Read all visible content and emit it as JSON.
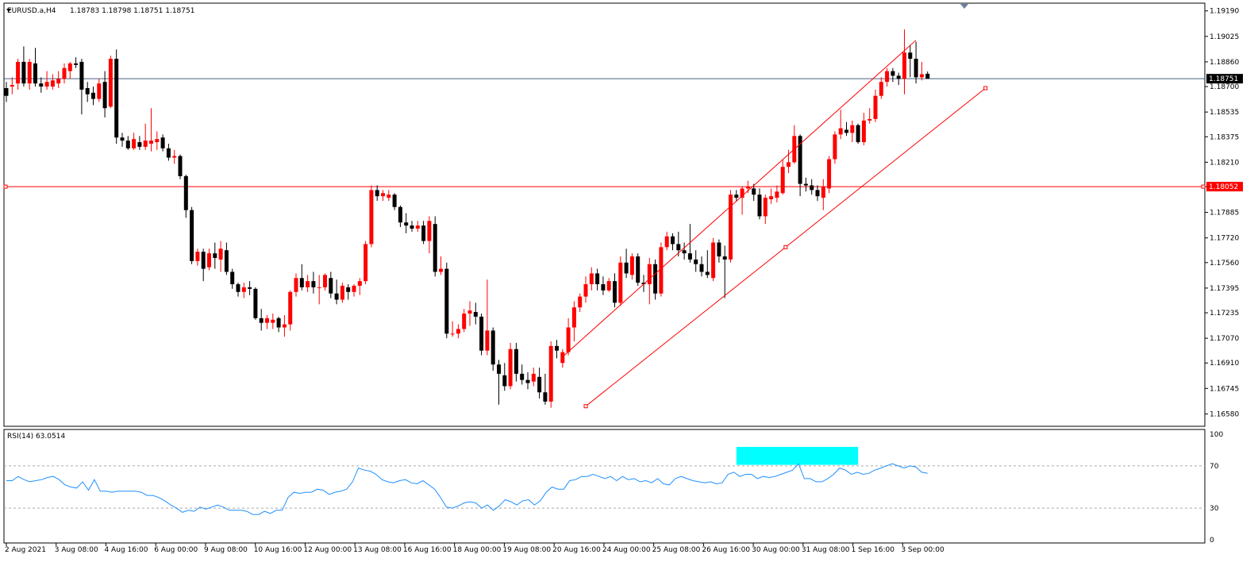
{
  "chart_data": [
    {
      "type": "candlestick",
      "symbol_label": "EURUSD.a,H4",
      "ohlc_label": "1.18783 1.18798 1.18751 1.18751",
      "ylim": [
        1.165,
        1.1924
      ],
      "y_ticks": [
        "1.19190",
        "1.19025",
        "1.18860",
        "1.18700",
        "1.18535",
        "1.18375",
        "1.18210",
        "1.18052",
        "1.17885",
        "1.17720",
        "1.17560",
        "1.17395",
        "1.17235",
        "1.17070",
        "1.16910",
        "1.16745",
        "1.16580"
      ],
      "current_price": 1.18751,
      "current_price_label": "1.18751",
      "hline": 1.18052,
      "hline_label": "1.18052",
      "x_labels": [
        "2 Aug 2021",
        "3 Aug 08:00",
        "4 Aug 16:00",
        "6 Aug 00:00",
        "9 Aug 08:00",
        "10 Aug 16:00",
        "12 Aug 00:00",
        "13 Aug 08:00",
        "16 Aug 16:00",
        "18 Aug 00:00",
        "19 Aug 08:00",
        "20 Aug 16:00",
        "24 Aug 00:00",
        "25 Aug 08:00",
        "26 Aug 16:00",
        "30 Aug 00:00",
        "31 Aug 08:00",
        "1 Sep 16:00",
        "3 Sep 00:00"
      ],
      "candles": [
        [
          1.1869,
          1.1873,
          1.186,
          1.1864
        ],
        [
          1.187,
          1.1876,
          1.1865,
          1.1871
        ],
        [
          1.1872,
          1.1888,
          1.1868,
          1.1886
        ],
        [
          1.1886,
          1.1896,
          1.187,
          1.1872
        ],
        [
          1.1872,
          1.1888,
          1.1868,
          1.1886
        ],
        [
          1.1885,
          1.1895,
          1.187,
          1.1872
        ],
        [
          1.1872,
          1.1876,
          1.1866,
          1.187
        ],
        [
          1.187,
          1.188,
          1.1868,
          1.1873
        ],
        [
          1.187,
          1.1878,
          1.1868,
          1.1874
        ],
        [
          1.1872,
          1.188,
          1.1869,
          1.1875
        ],
        [
          1.1875,
          1.1885,
          1.1872,
          1.1882
        ],
        [
          1.188,
          1.1886,
          1.1875,
          1.1885
        ],
        [
          1.1885,
          1.1889,
          1.1882,
          1.1884
        ],
        [
          1.1886,
          1.1888,
          1.1852,
          1.1868
        ],
        [
          1.1869,
          1.1873,
          1.186,
          1.1865
        ],
        [
          1.1866,
          1.187,
          1.1858,
          1.1862
        ],
        [
          1.1862,
          1.1875,
          1.186,
          1.1872
        ],
        [
          1.1873,
          1.188,
          1.185,
          1.1856
        ],
        [
          1.1857,
          1.189,
          1.1856,
          1.1888
        ],
        [
          1.1888,
          1.1894,
          1.1833,
          1.1837
        ],
        [
          1.1837,
          1.184,
          1.1831,
          1.1835
        ],
        [
          1.1835,
          1.1838,
          1.1829,
          1.183
        ],
        [
          1.183,
          1.184,
          1.1829,
          1.1836
        ],
        [
          1.1834,
          1.1838,
          1.1829,
          1.1831
        ],
        [
          1.1831,
          1.1846,
          1.1829,
          1.1835
        ],
        [
          1.1833,
          1.1856,
          1.1828,
          1.1835
        ],
        [
          1.1834,
          1.1841,
          1.1829,
          1.1836
        ],
        [
          1.1837,
          1.1839,
          1.1828,
          1.183
        ],
        [
          1.183,
          1.1833,
          1.1822,
          1.1824
        ],
        [
          1.1824,
          1.1829,
          1.182,
          1.1825
        ],
        [
          1.1825,
          1.1826,
          1.181,
          1.1812
        ],
        [
          1.1812,
          1.1813,
          1.1785,
          1.179
        ],
        [
          1.179,
          1.1792,
          1.1755,
          1.1757
        ],
        [
          1.1757,
          1.1765,
          1.1754,
          1.1763
        ],
        [
          1.1763,
          1.1765,
          1.1744,
          1.1752
        ],
        [
          1.1753,
          1.1765,
          1.1751,
          1.1762
        ],
        [
          1.1762,
          1.1769,
          1.1752,
          1.1759
        ],
        [
          1.1758,
          1.177,
          1.175,
          1.1765
        ],
        [
          1.1764,
          1.1769,
          1.1748,
          1.175
        ],
        [
          1.175,
          1.1752,
          1.1739,
          1.1742
        ],
        [
          1.1742,
          1.1743,
          1.1734,
          1.1737
        ],
        [
          1.1737,
          1.1743,
          1.1733,
          1.174
        ],
        [
          1.174,
          1.1744,
          1.1735,
          1.1739
        ],
        [
          1.1739,
          1.174,
          1.1719,
          1.172
        ],
        [
          1.172,
          1.1726,
          1.1712,
          1.1717
        ],
        [
          1.1717,
          1.1722,
          1.1713,
          1.172
        ],
        [
          1.1717,
          1.1723,
          1.1713,
          1.1719
        ],
        [
          1.172,
          1.1721,
          1.1711,
          1.1714
        ],
        [
          1.1714,
          1.1722,
          1.1708,
          1.1716
        ],
        [
          1.1716,
          1.1738,
          1.1712,
          1.1737
        ],
        [
          1.1737,
          1.1749,
          1.1734,
          1.1746
        ],
        [
          1.1746,
          1.1755,
          1.1738,
          1.174
        ],
        [
          1.174,
          1.1748,
          1.1737,
          1.1744
        ],
        [
          1.1744,
          1.175,
          1.1736,
          1.174
        ],
        [
          1.174,
          1.1748,
          1.1729,
          1.174
        ],
        [
          1.174,
          1.1749,
          1.1738,
          1.1748
        ],
        [
          1.1746,
          1.175,
          1.1733,
          1.1736
        ],
        [
          1.1736,
          1.1745,
          1.1729,
          1.1732
        ],
        [
          1.1732,
          1.1743,
          1.173,
          1.1741
        ],
        [
          1.174,
          1.1742,
          1.1732,
          1.1737
        ],
        [
          1.1737,
          1.1742,
          1.1734,
          1.1741
        ],
        [
          1.1741,
          1.1746,
          1.1735,
          1.1744
        ],
        [
          1.1744,
          1.177,
          1.1742,
          1.1768
        ],
        [
          1.1768,
          1.1806,
          1.1766,
          1.1803
        ],
        [
          1.1803,
          1.1806,
          1.1796,
          1.1799
        ],
        [
          1.1799,
          1.1803,
          1.1796,
          1.1801
        ],
        [
          1.1798,
          1.1803,
          1.1796,
          1.18
        ],
        [
          1.18,
          1.1801,
          1.179,
          1.1792
        ],
        [
          1.1792,
          1.1793,
          1.1779,
          1.1782
        ],
        [
          1.1782,
          1.1788,
          1.1775,
          1.178
        ],
        [
          1.178,
          1.1783,
          1.1776,
          1.1778
        ],
        [
          1.1778,
          1.1783,
          1.1776,
          1.178
        ],
        [
          1.178,
          1.1783,
          1.1768,
          1.177
        ],
        [
          1.177,
          1.1786,
          1.1762,
          1.1783
        ],
        [
          1.1781,
          1.1786,
          1.1747,
          1.175
        ],
        [
          1.175,
          1.176,
          1.1748,
          1.1752
        ],
        [
          1.1752,
          1.1756,
          1.1707,
          1.171
        ],
        [
          1.171,
          1.1718,
          1.1708,
          1.171
        ],
        [
          1.171,
          1.1716,
          1.1707,
          1.1713
        ],
        [
          1.1713,
          1.1726,
          1.1711,
          1.1723
        ],
        [
          1.1723,
          1.1731,
          1.1715,
          1.1725
        ],
        [
          1.1724,
          1.173,
          1.1716,
          1.1721
        ],
        [
          1.1721,
          1.1723,
          1.1696,
          1.1699
        ],
        [
          1.1699,
          1.1745,
          1.1696,
          1.1712
        ],
        [
          1.1712,
          1.1714,
          1.1686,
          1.169
        ],
        [
          1.169,
          1.1693,
          1.1664,
          1.1684
        ],
        [
          1.1683,
          1.1691,
          1.1673,
          1.1676
        ],
        [
          1.1676,
          1.1704,
          1.1674,
          1.17
        ],
        [
          1.17,
          1.1704,
          1.1679,
          1.1684
        ],
        [
          1.1684,
          1.169,
          1.1677,
          1.168
        ],
        [
          1.168,
          1.1685,
          1.1674,
          1.1678
        ],
        [
          1.1679,
          1.1688,
          1.1676,
          1.1684
        ],
        [
          1.1682,
          1.1688,
          1.1668,
          1.1672
        ],
        [
          1.1672,
          1.1684,
          1.1664,
          1.1666
        ],
        [
          1.1666,
          1.1705,
          1.1662,
          1.1702
        ],
        [
          1.1702,
          1.1706,
          1.1694,
          1.1699
        ],
        [
          1.1691,
          1.17,
          1.1688,
          1.1698
        ],
        [
          1.1698,
          1.172,
          1.1696,
          1.1714
        ],
        [
          1.1714,
          1.1731,
          1.1705,
          1.1727
        ],
        [
          1.1727,
          1.1736,
          1.1724,
          1.1734
        ],
        [
          1.1734,
          1.1747,
          1.173,
          1.1742
        ],
        [
          1.1742,
          1.1753,
          1.1738,
          1.1749
        ],
        [
          1.1749,
          1.1752,
          1.1738,
          1.1742
        ],
        [
          1.1742,
          1.1747,
          1.1735,
          1.1738
        ],
        [
          1.1738,
          1.1746,
          1.1737,
          1.1744
        ],
        [
          1.1744,
          1.1749,
          1.1727,
          1.173
        ],
        [
          1.173,
          1.176,
          1.1728,
          1.1756
        ],
        [
          1.1756,
          1.1765,
          1.1746,
          1.1749
        ],
        [
          1.1748,
          1.1762,
          1.1745,
          1.176
        ],
        [
          1.176,
          1.1762,
          1.1741,
          1.1743
        ],
        [
          1.1743,
          1.1748,
          1.1737,
          1.1742
        ],
        [
          1.1742,
          1.1759,
          1.1729,
          1.1755
        ],
        [
          1.1755,
          1.1758,
          1.1732,
          1.1736
        ],
        [
          1.1736,
          1.1769,
          1.1734,
          1.1766
        ],
        [
          1.1766,
          1.1776,
          1.1764,
          1.1773
        ],
        [
          1.1773,
          1.1775,
          1.1764,
          1.1768
        ],
        [
          1.1768,
          1.1776,
          1.176,
          1.1764
        ],
        [
          1.1764,
          1.1769,
          1.1758,
          1.1762
        ],
        [
          1.1762,
          1.1781,
          1.1756,
          1.1758
        ],
        [
          1.1758,
          1.1764,
          1.175,
          1.1755
        ],
        [
          1.1755,
          1.176,
          1.1747,
          1.175
        ],
        [
          1.175,
          1.1764,
          1.1746,
          1.1748
        ],
        [
          1.1746,
          1.1772,
          1.1744,
          1.1769
        ],
        [
          1.1769,
          1.1771,
          1.1756,
          1.176
        ],
        [
          1.176,
          1.1767,
          1.1733,
          1.1758
        ],
        [
          1.1758,
          1.1803,
          1.1756,
          1.18
        ],
        [
          1.18,
          1.1803,
          1.1796,
          1.1798
        ],
        [
          1.1798,
          1.1805,
          1.1787,
          1.1804
        ],
        [
          1.1804,
          1.1809,
          1.1801,
          1.1805
        ],
        [
          1.1804,
          1.1807,
          1.1796,
          1.18
        ],
        [
          1.18,
          1.1804,
          1.1784,
          1.1786
        ],
        [
          1.1786,
          1.18,
          1.1781,
          1.1798
        ],
        [
          1.1797,
          1.1804,
          1.1794,
          1.1799
        ],
        [
          1.1798,
          1.1806,
          1.1795,
          1.1802
        ],
        [
          1.1801,
          1.1823,
          1.18,
          1.1818
        ],
        [
          1.1818,
          1.1829,
          1.1814,
          1.1821
        ],
        [
          1.1821,
          1.1845,
          1.182,
          1.1838
        ],
        [
          1.1838,
          1.1839,
          1.1799,
          1.1807
        ],
        [
          1.1807,
          1.1811,
          1.1802,
          1.1806
        ],
        [
          1.1806,
          1.181,
          1.18,
          1.1803
        ],
        [
          1.1803,
          1.1806,
          1.1796,
          1.1799
        ],
        [
          1.1798,
          1.181,
          1.179,
          1.1805
        ],
        [
          1.1804,
          1.1825,
          1.1801,
          1.1823
        ],
        [
          1.1823,
          1.1841,
          1.182,
          1.1839
        ],
        [
          1.1839,
          1.1855,
          1.1836,
          1.1843
        ],
        [
          1.1842,
          1.1847,
          1.1838,
          1.184
        ],
        [
          1.184,
          1.1848,
          1.1834,
          1.1845
        ],
        [
          1.1845,
          1.1846,
          1.1833,
          1.1834
        ],
        [
          1.1834,
          1.1853,
          1.1832,
          1.1848
        ],
        [
          1.1848,
          1.1856,
          1.1846,
          1.1849
        ],
        [
          1.1849,
          1.1868,
          1.1847,
          1.1864
        ],
        [
          1.1864,
          1.1876,
          1.1862,
          1.1873
        ],
        [
          1.1873,
          1.1882,
          1.187,
          1.188
        ],
        [
          1.188,
          1.1882,
          1.1873,
          1.1877
        ],
        [
          1.1877,
          1.1879,
          1.1871,
          1.1875
        ],
        [
          1.1875,
          1.1907,
          1.1865,
          1.1892
        ],
        [
          1.1892,
          1.1897,
          1.1876,
          1.1888
        ],
        [
          1.1888,
          1.1899,
          1.1872,
          1.1876
        ],
        [
          1.1876,
          1.1886,
          1.1874,
          1.1878
        ],
        [
          1.18783,
          1.18798,
          1.18751,
          1.18751
        ]
      ],
      "trendlines": [
        {
          "from": [
            96,
            1.1695
          ],
          "to": [
            157,
            1.19
          ]
        },
        {
          "from": [
            100,
            1.1663
          ],
          "to": [
            169,
            1.1869
          ]
        }
      ]
    },
    {
      "type": "line",
      "indicator_label": "RSI(14) 63.0514",
      "ylim": [
        0,
        100
      ],
      "y_ticks": [
        "100",
        "70",
        "30",
        "0"
      ],
      "levels": [
        70,
        30
      ],
      "values": [
        56,
        56,
        60,
        57,
        55,
        56,
        57,
        59,
        60,
        57,
        52,
        50,
        49,
        55,
        47,
        57,
        46,
        46,
        45,
        46,
        46,
        46,
        46,
        45,
        42,
        42,
        40,
        37,
        33,
        30,
        26,
        28,
        27,
        31,
        29,
        31,
        33,
        31,
        28,
        28,
        28,
        27,
        24,
        24,
        27,
        25,
        28,
        28,
        40,
        45,
        44,
        45,
        45,
        48,
        47,
        43,
        45,
        46,
        48,
        55,
        68,
        66,
        65,
        62,
        57,
        55,
        54,
        56,
        57,
        54,
        53,
        56,
        52,
        48,
        40,
        31,
        30,
        32,
        35,
        36,
        35,
        30,
        33,
        28,
        32,
        38,
        36,
        33,
        37,
        38,
        33,
        37,
        45,
        50,
        48,
        48,
        56,
        57,
        60,
        60,
        62,
        60,
        58,
        60,
        56,
        60,
        57,
        58,
        55,
        56,
        54,
        58,
        53,
        52,
        58,
        60,
        58,
        56,
        55,
        54,
        55,
        53,
        54,
        62,
        64,
        60,
        62,
        62,
        58,
        60,
        59,
        60,
        62,
        64,
        66,
        72,
        58,
        58,
        55,
        55,
        58,
        62,
        68,
        66,
        62,
        64,
        62,
        63,
        66,
        68,
        70,
        72,
        70,
        68,
        70,
        69,
        64,
        63
      ],
      "highlight_band": {
        "x_from": 126,
        "x_to": 147,
        "y_from": 71,
        "y_to": 88,
        "color": "#00ffff"
      }
    }
  ],
  "colors": {
    "bull": "#ff0000",
    "bear": "#000000",
    "trend": "#ff0000",
    "hline": "#ff0000",
    "price_line": "#465f82",
    "rsi": "#1e90ff",
    "level": "#aaaaaa",
    "highlight": "#00ffff"
  }
}
